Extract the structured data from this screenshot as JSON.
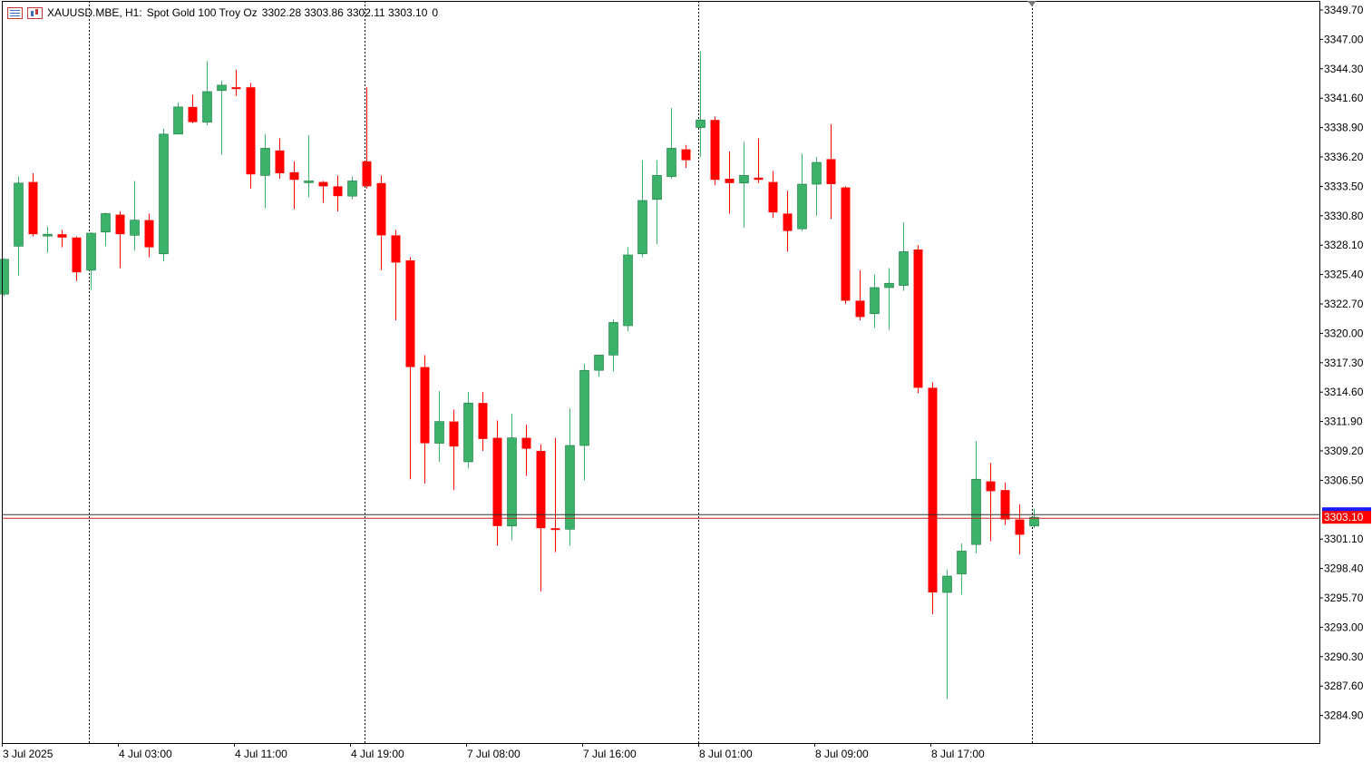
{
  "header": {
    "symbol": "XAUUSD.MBE, H1:",
    "description": "Spot Gold 100 Troy Oz",
    "ohlc": "3302.28 3303.86 3302.11 3303.10",
    "volume": "0"
  },
  "icons": {
    "list": "quick-list-icon",
    "chart": "chart-window-icon"
  },
  "colors": {
    "bull": "#3bb26a",
    "bear": "#ff0000",
    "bid_line": "#333333",
    "ask_line": "#cc2222",
    "price_label_bg": "#ff0000"
  },
  "chart_data": {
    "type": "candlestick",
    "symbol": "XAUUSD.MBE",
    "timeframe": "H1",
    "ylim": [
      3282.4,
      3350.8
    ],
    "y_ticks": [
      "3349.70",
      "3347.00",
      "3344.30",
      "3341.60",
      "3338.90",
      "3336.20",
      "3333.50",
      "3330.80",
      "3328.10",
      "3325.40",
      "3322.70",
      "3320.00",
      "3317.30",
      "3314.60",
      "3311.90",
      "3309.20",
      "3306.50",
      "3301.10",
      "3298.40",
      "3295.70",
      "3293.00",
      "3290.30",
      "3287.60",
      "3284.90"
    ],
    "x_labels": [
      "3 Jul 2025",
      "4 Jul 03:00",
      "4 Jul 11:00",
      "4 Jul 19:00",
      "7 Jul 08:00",
      "7 Jul 16:00",
      "8 Jul 01:00",
      "8 Jul 09:00",
      "8 Jul 17:00"
    ],
    "last_price": "3303.10",
    "grid": false,
    "candles": [
      {
        "o": 3323.6,
        "h": 3326.9,
        "l": 3323.4,
        "c": 3326.8
      },
      {
        "o": 3328.0,
        "h": 3334.4,
        "l": 3325.3,
        "c": 3333.8
      },
      {
        "o": 3333.9,
        "h": 3334.7,
        "l": 3328.9,
        "c": 3329.1
      },
      {
        "o": 3329.0,
        "h": 3329.8,
        "l": 3327.4,
        "c": 3329.1
      },
      {
        "o": 3329.1,
        "h": 3329.5,
        "l": 3327.9,
        "c": 3328.8
      },
      {
        "o": 3328.8,
        "h": 3328.9,
        "l": 3324.8,
        "c": 3325.6
      },
      {
        "o": 3325.8,
        "h": 3329.3,
        "l": 3324.0,
        "c": 3329.2
      },
      {
        "o": 3329.3,
        "h": 3331.1,
        "l": 3328.0,
        "c": 3331.0
      },
      {
        "o": 3330.9,
        "h": 3331.2,
        "l": 3326.0,
        "c": 3329.1
      },
      {
        "o": 3329.0,
        "h": 3334.0,
        "l": 3327.6,
        "c": 3330.4
      },
      {
        "o": 3330.4,
        "h": 3331.0,
        "l": 3327.0,
        "c": 3327.9
      },
      {
        "o": 3327.3,
        "h": 3338.8,
        "l": 3326.6,
        "c": 3338.3
      },
      {
        "o": 3338.3,
        "h": 3341.2,
        "l": 3338.3,
        "c": 3340.8
      },
      {
        "o": 3340.8,
        "h": 3341.9,
        "l": 3339.3,
        "c": 3339.4
      },
      {
        "o": 3339.4,
        "h": 3345.0,
        "l": 3339.1,
        "c": 3342.2
      },
      {
        "o": 3342.3,
        "h": 3343.2,
        "l": 3336.4,
        "c": 3342.8
      },
      {
        "o": 3342.6,
        "h": 3344.2,
        "l": 3341.8,
        "c": 3342.5
      },
      {
        "o": 3342.6,
        "h": 3343.0,
        "l": 3333.3,
        "c": 3334.6
      },
      {
        "o": 3334.5,
        "h": 3338.3,
        "l": 3331.5,
        "c": 3337.0
      },
      {
        "o": 3336.8,
        "h": 3337.9,
        "l": 3334.2,
        "c": 3334.7
      },
      {
        "o": 3334.8,
        "h": 3335.8,
        "l": 3331.4,
        "c": 3334.1
      },
      {
        "o": 3334.0,
        "h": 3338.2,
        "l": 3332.5,
        "c": 3334.0
      },
      {
        "o": 3333.9,
        "h": 3334.0,
        "l": 3332.0,
        "c": 3333.5
      },
      {
        "o": 3333.5,
        "h": 3334.5,
        "l": 3331.2,
        "c": 3332.6
      },
      {
        "o": 3332.6,
        "h": 3334.4,
        "l": 3332.3,
        "c": 3334.0
      },
      {
        "o": 3335.8,
        "h": 3342.6,
        "l": 3333.3,
        "c": 3333.5
      },
      {
        "o": 3333.8,
        "h": 3334.5,
        "l": 3325.8,
        "c": 3329.0
      },
      {
        "o": 3329.0,
        "h": 3329.5,
        "l": 3321.2,
        "c": 3326.5
      },
      {
        "o": 3326.7,
        "h": 3327.0,
        "l": 3306.6,
        "c": 3316.9
      },
      {
        "o": 3316.9,
        "h": 3318.0,
        "l": 3306.2,
        "c": 3309.9
      },
      {
        "o": 3309.9,
        "h": 3314.7,
        "l": 3308.2,
        "c": 3311.9
      },
      {
        "o": 3311.9,
        "h": 3313.0,
        "l": 3305.6,
        "c": 3309.6
      },
      {
        "o": 3308.2,
        "h": 3314.6,
        "l": 3307.6,
        "c": 3313.6
      },
      {
        "o": 3313.6,
        "h": 3314.6,
        "l": 3309.2,
        "c": 3310.3
      },
      {
        "o": 3310.4,
        "h": 3312.0,
        "l": 3300.5,
        "c": 3302.3
      },
      {
        "o": 3302.3,
        "h": 3312.6,
        "l": 3301.0,
        "c": 3310.4
      },
      {
        "o": 3310.4,
        "h": 3311.6,
        "l": 3306.9,
        "c": 3309.4
      },
      {
        "o": 3309.2,
        "h": 3309.8,
        "l": 3296.3,
        "c": 3302.1
      },
      {
        "o": 3302.1,
        "h": 3310.4,
        "l": 3299.9,
        "c": 3302.0
      },
      {
        "o": 3302.0,
        "h": 3313.1,
        "l": 3300.5,
        "c": 3309.7
      },
      {
        "o": 3309.7,
        "h": 3317.2,
        "l": 3306.5,
        "c": 3316.6
      },
      {
        "o": 3316.6,
        "h": 3318.0,
        "l": 3316.0,
        "c": 3318.0
      },
      {
        "o": 3318.0,
        "h": 3321.3,
        "l": 3316.5,
        "c": 3321.0
      },
      {
        "o": 3320.7,
        "h": 3327.9,
        "l": 3320.2,
        "c": 3327.2
      },
      {
        "o": 3327.3,
        "h": 3335.9,
        "l": 3327.0,
        "c": 3332.2
      },
      {
        "o": 3332.3,
        "h": 3335.9,
        "l": 3328.2,
        "c": 3334.5
      },
      {
        "o": 3334.4,
        "h": 3340.7,
        "l": 3334.2,
        "c": 3337.0
      },
      {
        "o": 3336.9,
        "h": 3337.3,
        "l": 3335.2,
        "c": 3335.9
      },
      {
        "o": 3338.9,
        "h": 3345.9,
        "l": 3336.2,
        "c": 3339.6
      },
      {
        "o": 3339.6,
        "h": 3339.9,
        "l": 3333.6,
        "c": 3334.1
      },
      {
        "o": 3334.2,
        "h": 3336.7,
        "l": 3331.0,
        "c": 3333.8
      },
      {
        "o": 3333.8,
        "h": 3337.6,
        "l": 3329.7,
        "c": 3334.5
      },
      {
        "o": 3334.3,
        "h": 3337.9,
        "l": 3333.8,
        "c": 3334.1
      },
      {
        "o": 3333.9,
        "h": 3334.9,
        "l": 3330.6,
        "c": 3331.1
      },
      {
        "o": 3331.0,
        "h": 3333.1,
        "l": 3327.5,
        "c": 3329.4
      },
      {
        "o": 3329.6,
        "h": 3336.5,
        "l": 3329.4,
        "c": 3333.7
      },
      {
        "o": 3333.7,
        "h": 3336.2,
        "l": 3330.8,
        "c": 3335.7
      },
      {
        "o": 3336.0,
        "h": 3339.2,
        "l": 3330.5,
        "c": 3333.7
      },
      {
        "o": 3333.4,
        "h": 3333.5,
        "l": 3322.7,
        "c": 3323.0
      },
      {
        "o": 3323.0,
        "h": 3325.8,
        "l": 3321.2,
        "c": 3321.5
      },
      {
        "o": 3321.8,
        "h": 3325.4,
        "l": 3320.5,
        "c": 3324.2
      },
      {
        "o": 3324.2,
        "h": 3326.0,
        "l": 3320.3,
        "c": 3324.6
      },
      {
        "o": 3324.4,
        "h": 3330.2,
        "l": 3323.9,
        "c": 3327.5
      },
      {
        "o": 3327.7,
        "h": 3328.1,
        "l": 3314.5,
        "c": 3315.0
      },
      {
        "o": 3315.0,
        "h": 3315.5,
        "l": 3294.2,
        "c": 3296.2
      },
      {
        "o": 3296.2,
        "h": 3298.3,
        "l": 3286.4,
        "c": 3297.7
      },
      {
        "o": 3297.9,
        "h": 3300.7,
        "l": 3296.0,
        "c": 3300.0
      },
      {
        "o": 3300.6,
        "h": 3310.1,
        "l": 3299.8,
        "c": 3306.6
      },
      {
        "o": 3306.4,
        "h": 3308.1,
        "l": 3300.9,
        "c": 3305.5
      },
      {
        "o": 3305.6,
        "h": 3306.3,
        "l": 3302.4,
        "c": 3302.9
      },
      {
        "o": 3302.9,
        "h": 3304.3,
        "l": 3299.7,
        "c": 3301.5
      },
      {
        "o": 3302.3,
        "h": 3303.9,
        "l": 3302.1,
        "c": 3303.1
      }
    ]
  }
}
